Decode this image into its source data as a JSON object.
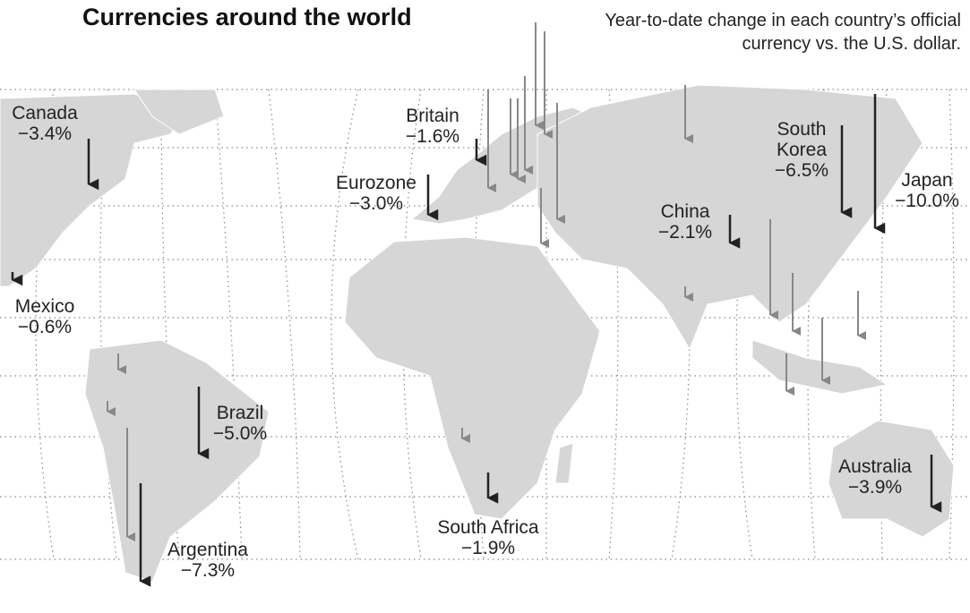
{
  "title": "Currencies around the world",
  "subtitle": "Year-to-date change in each country’s official currency vs. the U.S. dollar.",
  "countries": [
    {
      "name": "Canada",
      "change": -3.4,
      "label": "−3.4%"
    },
    {
      "name": "Britain",
      "change": -1.6,
      "label": "−1.6%"
    },
    {
      "name": "Eurozone",
      "change": -3.0,
      "label": "−3.0%"
    },
    {
      "name": "Mexico",
      "change": -0.6,
      "label": "−0.6%"
    },
    {
      "name": "Brazil",
      "change": -5.0,
      "label": "−5.0%"
    },
    {
      "name": "Argentina",
      "change": -7.3,
      "label": "−7.3%"
    },
    {
      "name": "South Africa",
      "change": -1.9,
      "label": "−1.9%"
    },
    {
      "name": "China",
      "change": -2.1,
      "label": "−2.1%"
    },
    {
      "name": "South Korea",
      "change": -6.5,
      "label": "−6.5%"
    },
    {
      "name": "Japan",
      "change": -10.0,
      "label": "−10.0%"
    },
    {
      "name": "Australia",
      "change": -3.9,
      "label": "−3.9%"
    }
  ]
}
